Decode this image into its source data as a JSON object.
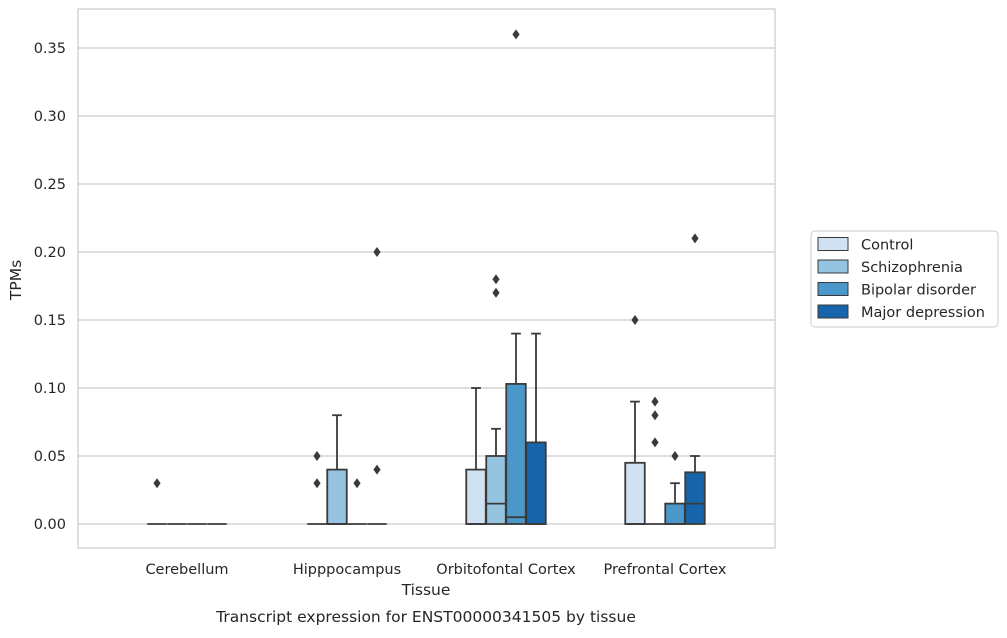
{
  "chart_data": {
    "type": "box",
    "title": "",
    "caption": "Transcript expression for ENST00000341505 by tissue",
    "xlabel": "Tissue",
    "ylabel": "TPMs",
    "ylim": [
      -0.0175,
      0.378
    ],
    "yticks": [
      "0.00",
      "0.05",
      "0.10",
      "0.15",
      "0.20",
      "0.25",
      "0.30",
      "0.35"
    ],
    "ytick_values": [
      0,
      0.05,
      0.1,
      0.15,
      0.2,
      0.25,
      0.3,
      0.35
    ],
    "grid": "horizontal",
    "legend_position": "right",
    "categories": [
      "Cerebellum",
      "Hipppocampus",
      "Orbitofontal Cortex",
      "Prefrontal Cortex"
    ],
    "series": [
      {
        "name": "Control",
        "color": "#d0e1f2",
        "boxes": [
          {
            "q1": 0,
            "median": 0,
            "q3": 0,
            "whisker_low": 0,
            "whisker_high": 0,
            "outliers": [
              0.03
            ]
          },
          {
            "q1": 0,
            "median": 0,
            "q3": 0,
            "whisker_low": 0,
            "whisker_high": 0,
            "outliers": [
              0.03,
              0.05
            ]
          },
          {
            "q1": 0,
            "median": 0,
            "q3": 0.04,
            "whisker_low": 0,
            "whisker_high": 0.1,
            "outliers": []
          },
          {
            "q1": 0,
            "median": 0,
            "q3": 0.045,
            "whisker_low": 0,
            "whisker_high": 0.09,
            "outliers": [
              0.15
            ]
          }
        ]
      },
      {
        "name": "Schizophrenia",
        "color": "#94c4df",
        "boxes": [
          {
            "q1": 0,
            "median": 0,
            "q3": 0,
            "whisker_low": 0,
            "whisker_high": 0,
            "outliers": []
          },
          {
            "q1": 0,
            "median": 0,
            "q3": 0.04,
            "whisker_low": 0,
            "whisker_high": 0.08,
            "outliers": []
          },
          {
            "q1": 0,
            "median": 0.015,
            "q3": 0.05,
            "whisker_low": 0,
            "whisker_high": 0.07,
            "outliers": [
              0.17,
              0.18
            ]
          },
          {
            "q1": 0,
            "median": 0,
            "q3": 0,
            "whisker_low": 0,
            "whisker_high": 0,
            "outliers": [
              0.06,
              0.08,
              0.09
            ]
          }
        ]
      },
      {
        "name": "Bipolar disorder",
        "color": "#4a98c9",
        "boxes": [
          {
            "q1": 0,
            "median": 0,
            "q3": 0,
            "whisker_low": 0,
            "whisker_high": 0,
            "outliers": []
          },
          {
            "q1": 0,
            "median": 0,
            "q3": 0,
            "whisker_low": 0,
            "whisker_high": 0,
            "outliers": [
              0.03
            ]
          },
          {
            "q1": 0,
            "median": 0.005,
            "q3": 0.103,
            "whisker_low": 0,
            "whisker_high": 0.14,
            "outliers": [
              0.36
            ]
          },
          {
            "q1": 0,
            "median": 0,
            "q3": 0.015,
            "whisker_low": 0,
            "whisker_high": 0.03,
            "outliers": [
              0.05
            ]
          }
        ]
      },
      {
        "name": "Major depression",
        "color": "#1764ab",
        "boxes": [
          {
            "q1": 0,
            "median": 0,
            "q3": 0,
            "whisker_low": 0,
            "whisker_high": 0,
            "outliers": []
          },
          {
            "q1": 0,
            "median": 0,
            "q3": 0,
            "whisker_low": 0,
            "whisker_high": 0,
            "outliers": [
              0.04,
              0.2
            ]
          },
          {
            "q1": 0,
            "median": 0,
            "q3": 0.06,
            "whisker_low": 0,
            "whisker_high": 0.14,
            "outliers": []
          },
          {
            "q1": 0,
            "median": 0.015,
            "q3": 0.038,
            "whisker_low": 0,
            "whisker_high": 0.05,
            "outliers": [
              0.21
            ]
          }
        ]
      }
    ]
  }
}
